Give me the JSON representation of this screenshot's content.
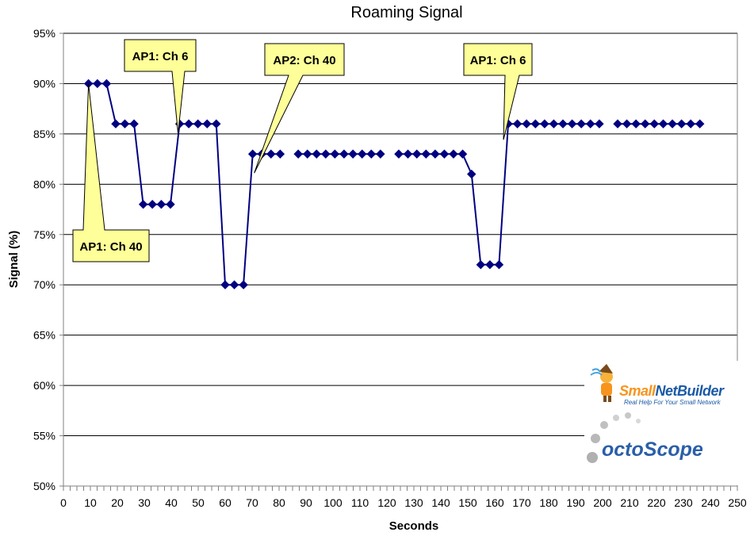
{
  "chart_data": {
    "type": "line",
    "title": "Roaming Signal",
    "xlabel": "Seconds",
    "ylabel": "Signal (%)",
    "xlim": [
      0,
      250
    ],
    "ylim": [
      50,
      95
    ],
    "x_ticks": [
      0,
      10,
      20,
      30,
      40,
      50,
      60,
      70,
      80,
      90,
      100,
      110,
      120,
      130,
      140,
      150,
      160,
      170,
      180,
      190,
      200,
      210,
      220,
      230,
      240,
      250
    ],
    "y_ticks": [
      50,
      55,
      60,
      65,
      70,
      75,
      80,
      85,
      90,
      95
    ],
    "y_tick_suffix": "%",
    "grid": "horizontal",
    "series_color": "#000080",
    "series": [
      {
        "segments": [
          [
            [
              9.3,
              90
            ],
            [
              12.6,
              90
            ],
            [
              16.0,
              90
            ],
            [
              19.4,
              86
            ],
            [
              22.8,
              86
            ],
            [
              26.2,
              86
            ],
            [
              29.6,
              78
            ],
            [
              33.0,
              78
            ],
            [
              36.3,
              78
            ],
            [
              39.7,
              78
            ],
            [
              43.1,
              86
            ],
            [
              46.5,
              86
            ],
            [
              49.9,
              86
            ],
            [
              53.3,
              86
            ],
            [
              56.7,
              86
            ],
            [
              60.0,
              70
            ],
            [
              63.4,
              70
            ],
            [
              66.8,
              70
            ],
            [
              70.2,
              83
            ],
            [
              73.6,
              83
            ],
            [
              77.0,
              83
            ],
            [
              80.4,
              83
            ]
          ],
          [
            [
              87.1,
              83
            ],
            [
              90.5,
              83
            ],
            [
              93.9,
              83
            ],
            [
              97.3,
              83
            ],
            [
              100.7,
              83
            ],
            [
              104.1,
              83
            ],
            [
              107.4,
              83
            ],
            [
              110.8,
              83
            ],
            [
              114.2,
              83
            ],
            [
              117.6,
              83
            ]
          ],
          [
            [
              124.4,
              83
            ],
            [
              127.8,
              83
            ],
            [
              131.1,
              83
            ],
            [
              134.5,
              83
            ],
            [
              137.9,
              83
            ],
            [
              141.3,
              83
            ],
            [
              144.7,
              83
            ],
            [
              148.1,
              83
            ],
            [
              151.4,
              81
            ],
            [
              154.8,
              72
            ],
            [
              158.2,
              72
            ],
            [
              161.6,
              72
            ],
            [
              165.0,
              86
            ],
            [
              168.4,
              86
            ],
            [
              171.8,
              86
            ],
            [
              175.1,
              86
            ],
            [
              178.5,
              86
            ],
            [
              181.9,
              86
            ],
            [
              185.3,
              86
            ],
            [
              188.7,
              86
            ],
            [
              192.1,
              86
            ],
            [
              195.5,
              86
            ],
            [
              198.8,
              86
            ]
          ],
          [
            [
              205.6,
              86
            ],
            [
              209.0,
              86
            ],
            [
              212.4,
              86
            ],
            [
              215.8,
              86
            ],
            [
              219.2,
              86
            ],
            [
              222.5,
              86
            ],
            [
              225.9,
              86
            ],
            [
              229.3,
              86
            ],
            [
              232.7,
              86
            ],
            [
              236.1,
              86
            ]
          ]
        ]
      }
    ],
    "annotations": [
      {
        "text": "AP1: Ch 40",
        "x": 9.3,
        "y": 90
      },
      {
        "text": "AP1: Ch 6",
        "x": 43.1,
        "y": 86
      },
      {
        "text": "AP2: Ch 40",
        "x": 70.2,
        "y": 83
      },
      {
        "text": "AP1: Ch 6",
        "x": 165.0,
        "y": 86
      }
    ],
    "callout_color": "#ffff99"
  },
  "logos": {
    "brand1_part1": "Small",
    "brand1_part2": "NetBuilder",
    "brand1_tagline": "Real Help For Your Small Network",
    "brand2": "octoScope"
  }
}
